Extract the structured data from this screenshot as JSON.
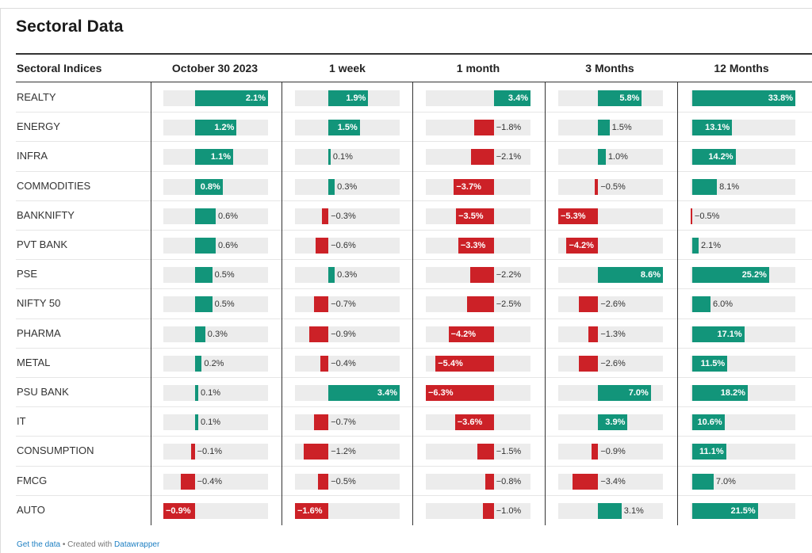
{
  "title": "Sectoral Data",
  "footer": {
    "get_data": "Get the data",
    "separator": " • Created with ",
    "tool": "Datawrapper"
  },
  "colors": {
    "positive": "#12957a",
    "negative": "#cc2127",
    "track": "#ececec"
  },
  "chart_data": {
    "type": "table",
    "label_header": "Sectoral Indices",
    "columns": [
      {
        "name": "October 30 2023",
        "min": -0.9,
        "max": 2.1
      },
      {
        "name": "1 week",
        "min": -1.6,
        "max": 3.4
      },
      {
        "name": "1 month",
        "min": -6.3,
        "max": 3.4
      },
      {
        "name": "3 Months",
        "min": -5.3,
        "max": 8.6
      },
      {
        "name": "12 Months",
        "min": -0.5,
        "max": 33.8
      }
    ],
    "rows": [
      {
        "label": "REALTY",
        "values": [
          2.1,
          1.9,
          3.4,
          5.8,
          33.8
        ]
      },
      {
        "label": "ENERGY",
        "values": [
          1.2,
          1.5,
          -1.8,
          1.5,
          13.1
        ]
      },
      {
        "label": "INFRA",
        "values": [
          1.1,
          0.1,
          -2.1,
          1.0,
          14.2
        ]
      },
      {
        "label": "COMMODITIES",
        "values": [
          0.8,
          0.3,
          -3.7,
          -0.5,
          8.1
        ]
      },
      {
        "label": "BANKNIFTY",
        "values": [
          0.6,
          -0.3,
          -3.5,
          -5.3,
          -0.5
        ]
      },
      {
        "label": "PVT BANK",
        "values": [
          0.6,
          -0.6,
          -3.3,
          -4.2,
          2.1
        ]
      },
      {
        "label": "PSE",
        "values": [
          0.5,
          0.3,
          -2.2,
          8.6,
          25.2
        ]
      },
      {
        "label": "NIFTY 50",
        "values": [
          0.5,
          -0.7,
          -2.5,
          -2.6,
          6.0
        ]
      },
      {
        "label": "PHARMA",
        "values": [
          0.3,
          -0.9,
          -4.2,
          -1.3,
          17.1
        ]
      },
      {
        "label": "METAL",
        "values": [
          0.2,
          -0.4,
          -5.4,
          -2.6,
          11.5
        ]
      },
      {
        "label": "PSU BANK",
        "values": [
          0.1,
          3.4,
          -6.3,
          7.0,
          18.2
        ]
      },
      {
        "label": "IT",
        "values": [
          0.1,
          -0.7,
          -3.6,
          3.9,
          10.6
        ]
      },
      {
        "label": "CONSUMPTION",
        "values": [
          -0.1,
          -1.2,
          -1.5,
          -0.9,
          11.1
        ]
      },
      {
        "label": "FMCG",
        "values": [
          -0.4,
          -0.5,
          -0.8,
          -3.4,
          7.0
        ]
      },
      {
        "label": "AUTO",
        "values": [
          -0.9,
          -1.6,
          -1.0,
          3.1,
          21.5
        ]
      }
    ]
  }
}
